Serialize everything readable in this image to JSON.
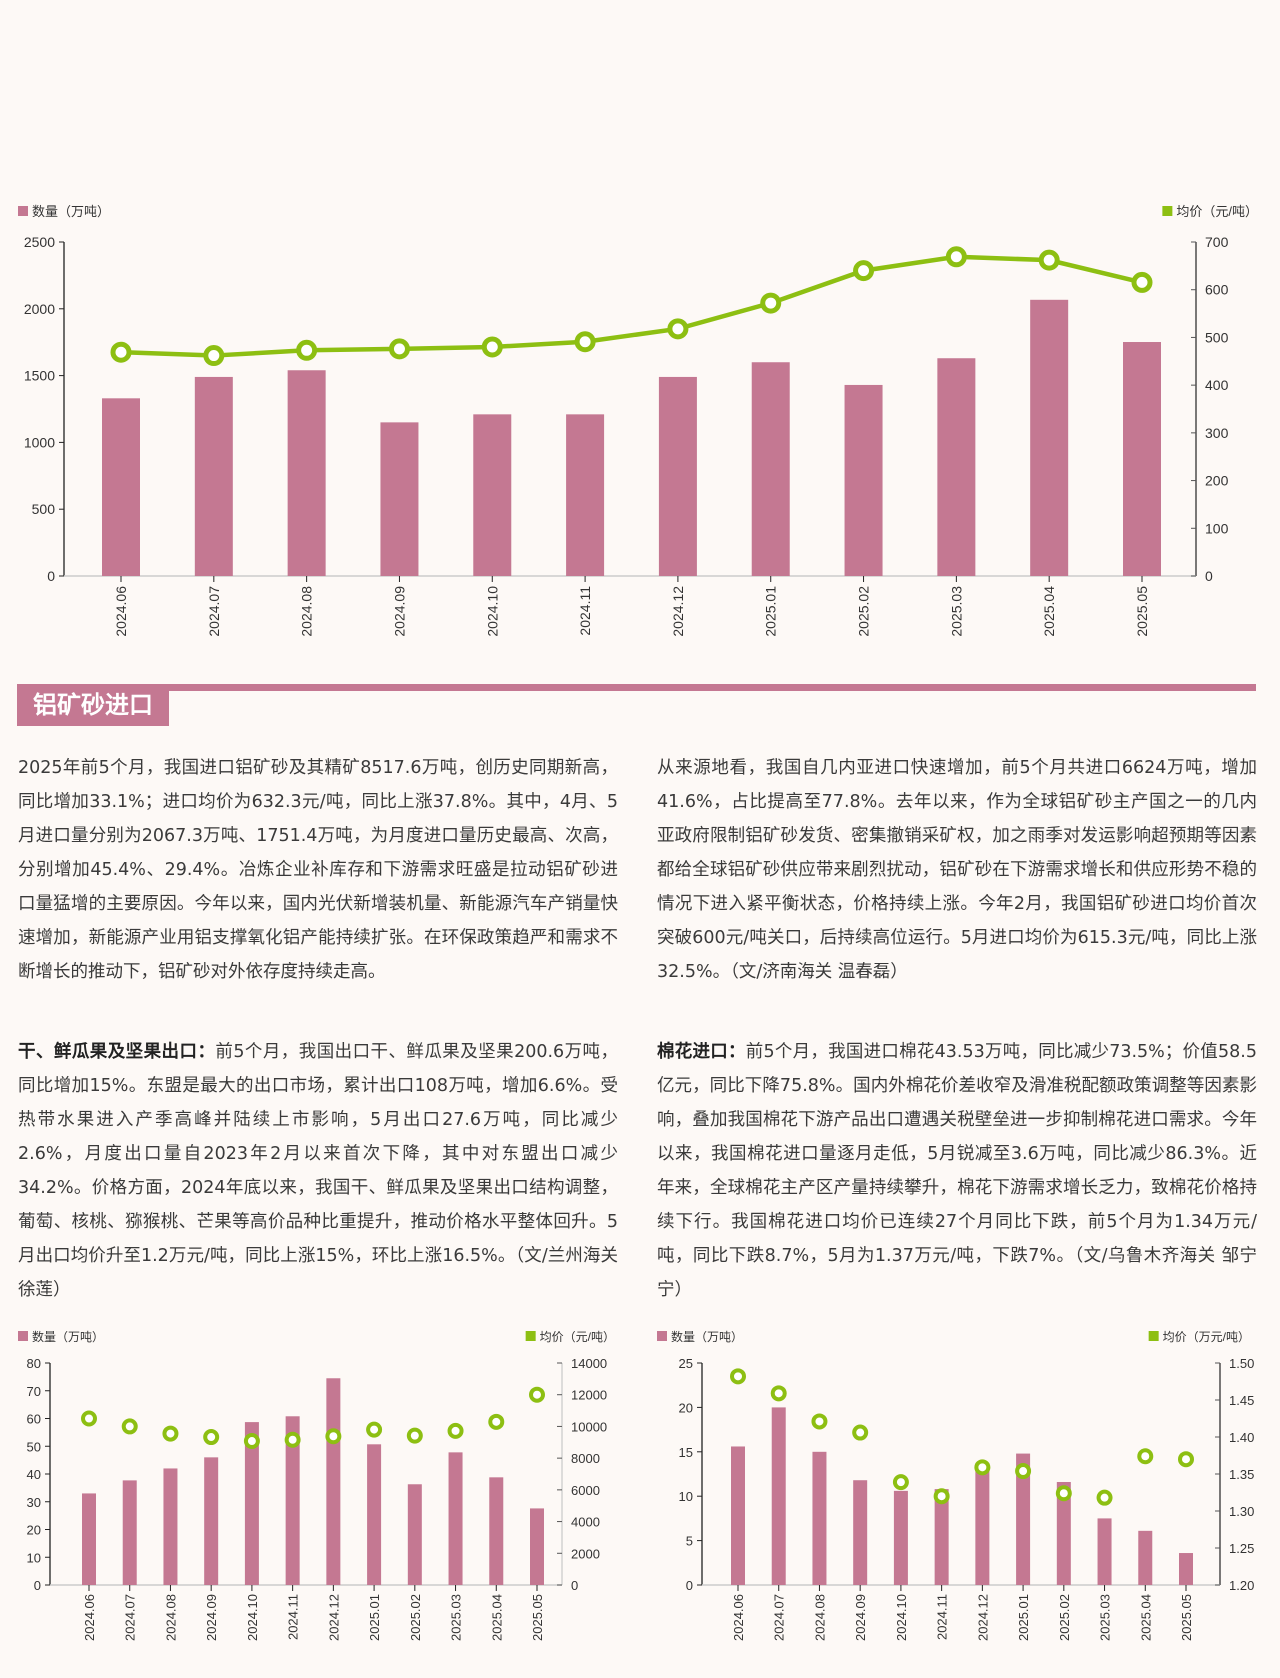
{
  "colors": {
    "bar": "#c47892",
    "line": "#8dbf12",
    "accent": "#c47892"
  },
  "section": {
    "title": "铝矿砂进口"
  },
  "articles": [
    {
      "lead": "",
      "text": "2025年前5个月，我国进口铝矿砂及其精矿8517.6万吨，创历史同期新高，同比增加33.1%；进口均价为632.3元/吨，同比上涨37.8%。其中，4月、5月进口量分别为2067.3万吨、1751.4万吨，为月度进口量历史最高、次高，分别增加45.4%、29.4%。冶炼企业补库存和下游需求旺盛是拉动铝矿砂进口量猛增的主要原因。今年以来，国内光伏新增装机量、新能源汽车产销量快速增加，新能源产业用铝支撑氧化铝产能持续扩张。在环保政策趋严和需求不断增长的推动下，铝矿砂对外依存度持续走高。"
    },
    {
      "lead": "",
      "text": "从来源地看，我国自几内亚进口快速增加，前5个月共进口6624万吨，增加41.6%，占比提高至77.8%。去年以来，作为全球铝矿砂主产国之一的几内亚政府限制铝矿砂发货、密集撤销采矿权，加之雨季对发运影响超预期等因素都给全球铝矿砂供应带来剧烈扰动，铝矿砂在下游需求增长和供应形势不稳的情况下进入紧平衡状态，价格持续上涨。今年2月，我国铝矿砂进口均价首次突破600元/吨关口，后持续高位运行。5月进口均价为615.3元/吨，同比上涨32.5%。（文/济南海关 温春磊）"
    },
    {
      "lead": "干、鲜瓜果及坚果出口：",
      "text": "前5个月，我国出口干、鲜瓜果及坚果200.6万吨，同比增加15%。东盟是最大的出口市场，累计出口108万吨，增加6.6%。受热带水果进入产季高峰并陆续上市影响，5月出口27.6万吨，同比减少2.6%，月度出口量自2023年2月以来首次下降，其中对东盟出口减少34.2%。价格方面，2024年底以来，我国干、鲜瓜果及坚果出口结构调整，葡萄、核桃、猕猴桃、芒果等高价品种比重提升，推动价格水平整体回升。5月出口均价升至1.2万元/吨，同比上涨15%，环比上涨16.5%。（文/兰州海关 徐莲）"
    },
    {
      "lead": "棉花进口：",
      "text": "前5个月，我国进口棉花43.53万吨，同比减少73.5%；价值58.5亿元，同比下降75.8%。国内外棉花价差收窄及滑准税配额政策调整等因素影响，叠加我国棉花下游产品出口遭遇关税壁垒进一步抑制棉花进口需求。今年以来，我国棉花进口量逐月走低，5月锐减至3.6万吨，同比减少86.3%。近年来，全球棉花主产区产量持续攀升，棉花下游需求增长乏力，致棉花价格持续下行。我国棉花进口均价已连续27个月同比下跌，前5个月为1.34万元/吨，同比下跌8.7%，5月为1.37万元/吨，下跌7%。（文/乌鲁木齐海关 邹宁宁）"
    }
  ],
  "chart_data": [
    {
      "type": "bar+line",
      "title": "铝矿砂进口",
      "legend_left": "数量（万吨）",
      "legend_right": "均价（元/吨）",
      "categories": [
        "2024.06",
        "2024.07",
        "2024.08",
        "2024.09",
        "2024.10",
        "2024.11",
        "2024.12",
        "2025.01",
        "2025.02",
        "2025.03",
        "2025.04",
        "2025.05"
      ],
      "y_ticks": [
        "0",
        "500",
        "1000",
        "1500",
        "2000",
        "2500"
      ],
      "y2_ticks": [
        "0",
        "100",
        "200",
        "300",
        "400",
        "500",
        "600",
        "700"
      ],
      "ylim": [
        0,
        2500
      ],
      "y2lim": [
        0,
        700
      ],
      "series": [
        {
          "name": "数量（万吨）",
          "kind": "bar",
          "values": [
            1330,
            1490,
            1540,
            1150,
            1210,
            1210,
            1490,
            1600,
            1430,
            1630,
            2067.3,
            1751.4
          ]
        },
        {
          "name": "均价（元/吨）",
          "kind": "line",
          "values": [
            469,
            462,
            473,
            476,
            480,
            491,
            518,
            572,
            640,
            669,
            662,
            615.3
          ]
        }
      ]
    },
    {
      "type": "bar+scatter",
      "title": "干、鲜瓜果及坚果出口",
      "legend_left": "数量（万吨）",
      "legend_right": "均价（元/吨）",
      "categories": [
        "2024.06",
        "2024.07",
        "2024.08",
        "2024.09",
        "2024.10",
        "2024.11",
        "2024.12",
        "2025.01",
        "2025.02",
        "2025.03",
        "2025.04",
        "2025.05"
      ],
      "y_ticks": [
        "0",
        "10",
        "20",
        "30",
        "40",
        "50",
        "60",
        "70",
        "80"
      ],
      "y2_ticks": [
        "0",
        "2000",
        "4000",
        "6000",
        "8000",
        "10000",
        "12000",
        "14000"
      ],
      "ylim": [
        0,
        80
      ],
      "y2lim": [
        0,
        14000
      ],
      "series": [
        {
          "name": "数量（万吨）",
          "kind": "bar",
          "values": [
            33,
            37.7,
            42,
            46,
            58.7,
            60.8,
            74.5,
            50.7,
            36.3,
            47.8,
            38.8,
            27.6
          ]
        },
        {
          "name": "均价（元/吨）",
          "kind": "scatter",
          "values": [
            10500,
            10000,
            9550,
            9330,
            9080,
            9160,
            9380,
            9800,
            9420,
            9720,
            10290,
            12000
          ]
        }
      ]
    },
    {
      "type": "bar+scatter",
      "title": "棉花进口",
      "legend_left": "数量（万吨）",
      "legend_right": "均价（万元/吨）",
      "categories": [
        "2024.06",
        "2024.07",
        "2024.08",
        "2024.09",
        "2024.10",
        "2024.11",
        "2024.12",
        "2025.01",
        "2025.02",
        "2025.03",
        "2025.04",
        "2025.05"
      ],
      "y_ticks": [
        "0",
        "5",
        "10",
        "15",
        "20",
        "25"
      ],
      "y2_ticks": [
        "1.20",
        "1.25",
        "1.30",
        "1.35",
        "1.40",
        "1.45",
        "1.50"
      ],
      "ylim": [
        0,
        25
      ],
      "y2lim": [
        1.2,
        1.5
      ],
      "series": [
        {
          "name": "数量（万吨）",
          "kind": "bar",
          "values": [
            15.6,
            20,
            15,
            11.8,
            10.6,
            10.8,
            13.6,
            14.8,
            11.6,
            7.5,
            6.1,
            3.6
          ]
        },
        {
          "name": "均价（万元/吨）",
          "kind": "scatter",
          "values": [
            1.482,
            1.459,
            1.421,
            1.406,
            1.339,
            1.32,
            1.359,
            1.354,
            1.324,
            1.318,
            1.374,
            1.37
          ]
        }
      ]
    }
  ]
}
